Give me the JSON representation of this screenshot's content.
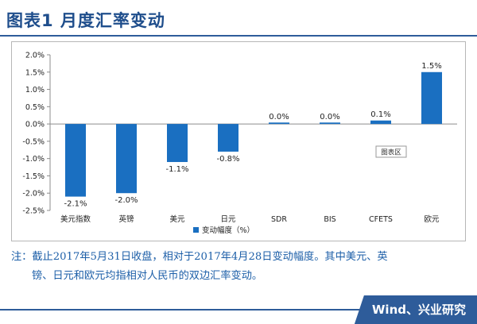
{
  "figure": {
    "title": "图表1  月度汇率变动",
    "note_line1": "注：截止2017年5月31日收盘，相对于2017年4月28日变动幅度。其中美元、英",
    "note_line2": "镑、日元和欧元均指相对人民币的双边汇率变动。",
    "source": "Wind、兴业研究"
  },
  "chart_data": {
    "type": "bar",
    "categories": [
      "美元指数",
      "英镑",
      "美元",
      "日元",
      "SDR",
      "BIS",
      "CFETS",
      "欧元"
    ],
    "series": [
      {
        "name": "变动幅度（%）",
        "values": [
          -2.1,
          -2.0,
          -1.1,
          -0.8,
          0.0,
          0.0,
          0.1,
          1.5
        ]
      }
    ],
    "data_labels": [
      "-2.1%",
      "-2.0%",
      "-1.1%",
      "-0.8%",
      "0.0%",
      "0.0%",
      "0.1%",
      "1.5%"
    ],
    "ylim": [
      -2.5,
      2.0
    ],
    "y_ticks": [
      2.0,
      1.5,
      1.0,
      0.5,
      0.0,
      -0.5,
      -1.0,
      -1.5,
      -2.0,
      -2.5
    ],
    "y_tick_labels": [
      "2.0%",
      "1.5%",
      "1.0%",
      "0.5%",
      "0.0%",
      "-0.5%",
      "-1.0%",
      "-1.5%",
      "-2.0%",
      "-2.5%"
    ],
    "legend_position": "bottom",
    "grid": false,
    "annotation": "图表区",
    "bar_color": "#1a6fc1",
    "title": "",
    "xlabel": "",
    "ylabel": ""
  }
}
